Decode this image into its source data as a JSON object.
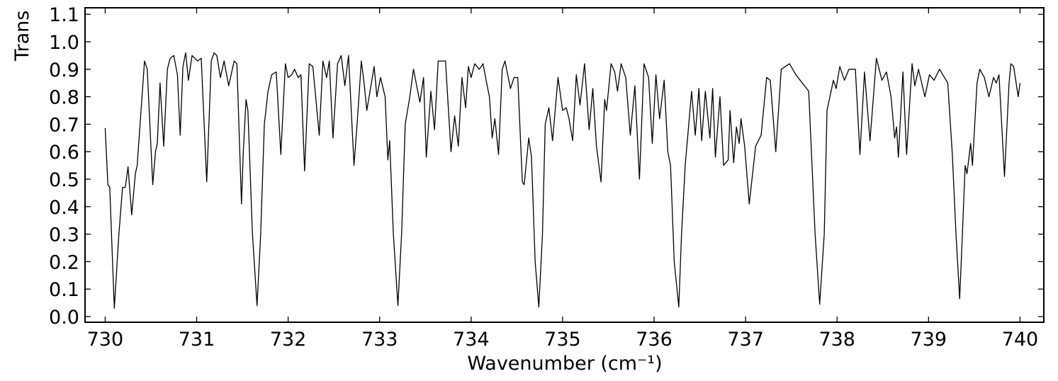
{
  "chart_data": {
    "type": "line",
    "x_label": "Wavenumber (cm⁻¹)",
    "y_label": "Trans",
    "color": "#000000",
    "xlim": [
      729.78,
      740.26
    ],
    "ylim": [
      -0.0206,
      1.1237
    ],
    "xticks": [
      730,
      731,
      732,
      733,
      734,
      735,
      736,
      737,
      738,
      739,
      740
    ],
    "yticks": [
      {
        "value": 0,
        "label": "0.0"
      },
      0.1,
      0.2,
      0.3,
      0.4,
      0.5,
      0.6,
      0.7,
      0.8,
      0.9,
      {
        "value": 1,
        "label": "1.0"
      },
      1.1
    ],
    "x": [
      730.0,
      730.03,
      730.05,
      730.1,
      730.15,
      730.19,
      730.22,
      730.25,
      730.29,
      730.33,
      730.35,
      730.43,
      730.46,
      730.52,
      730.55,
      730.57,
      730.6,
      730.64,
      730.68,
      730.71,
      730.75,
      730.79,
      730.82,
      730.85,
      730.88,
      730.91,
      730.95,
      731.01,
      731.05,
      731.11,
      731.16,
      731.19,
      731.22,
      731.26,
      731.3,
      731.35,
      731.41,
      731.44,
      731.49,
      731.51,
      731.54,
      731.56,
      731.61,
      731.66,
      731.7,
      731.74,
      731.78,
      731.82,
      731.87,
      731.92,
      731.97,
      732.0,
      732.04,
      732.07,
      732.11,
      732.14,
      732.18,
      732.23,
      732.27,
      732.34,
      732.38,
      732.42,
      732.45,
      732.49,
      732.54,
      732.58,
      732.62,
      732.66,
      732.72,
      732.76,
      732.8,
      732.83,
      732.86,
      732.91,
      732.94,
      732.97,
      733.01,
      733.06,
      733.09,
      733.11,
      733.15,
      733.2,
      733.24,
      733.28,
      733.33,
      733.37,
      733.44,
      733.48,
      733.51,
      733.56,
      733.6,
      733.64,
      733.72,
      733.78,
      733.82,
      733.86,
      733.9,
      733.94,
      733.97,
      734.0,
      734.04,
      734.09,
      734.13,
      734.17,
      734.2,
      734.23,
      734.26,
      734.3,
      734.34,
      734.37,
      734.43,
      734.47,
      734.51,
      734.56,
      734.58,
      734.63,
      734.66,
      734.7,
      734.74,
      734.78,
      734.81,
      734.85,
      734.89,
      734.95,
      735.0,
      735.04,
      735.07,
      735.11,
      735.15,
      735.19,
      735.24,
      735.29,
      735.33,
      735.37,
      735.42,
      735.46,
      735.48,
      735.53,
      735.57,
      735.6,
      735.64,
      735.69,
      735.74,
      735.79,
      735.84,
      735.89,
      735.94,
      735.98,
      736.02,
      736.06,
      736.11,
      736.15,
      736.18,
      736.22,
      736.27,
      736.3,
      736.34,
      736.41,
      736.45,
      736.49,
      736.52,
      736.56,
      736.61,
      736.64,
      736.67,
      736.72,
      736.76,
      736.81,
      736.83,
      736.87,
      736.9,
      736.93,
      736.95,
      736.99,
      737.04,
      737.11,
      737.17,
      737.23,
      737.27,
      737.33,
      737.39,
      737.48,
      737.55,
      737.62,
      737.69,
      737.76,
      737.81,
      737.86,
      737.89,
      737.96,
      737.99,
      738.03,
      738.08,
      738.13,
      738.2,
      738.25,
      738.3,
      738.36,
      738.43,
      738.49,
      738.54,
      738.59,
      738.63,
      738.65,
      738.67,
      738.72,
      738.76,
      738.82,
      738.85,
      738.89,
      738.96,
      739.01,
      739.06,
      739.12,
      739.21,
      739.26,
      739.3,
      739.34,
      739.37,
      739.4,
      739.42,
      739.46,
      739.48,
      739.53,
      739.56,
      739.61,
      739.66,
      739.71,
      739.74,
      739.77,
      739.83,
      739.88,
      739.9,
      739.93,
      739.98,
      740.0
    ],
    "values": [
      0.686,
      0.48,
      0.47,
      0.03,
      0.3,
      0.47,
      0.47,
      0.545,
      0.37,
      0.52,
      0.55,
      0.93,
      0.9,
      0.48,
      0.6,
      0.63,
      0.85,
      0.62,
      0.9,
      0.94,
      0.95,
      0.88,
      0.66,
      0.91,
      0.96,
      0.86,
      0.95,
      0.93,
      0.94,
      0.49,
      0.93,
      0.96,
      0.95,
      0.87,
      0.93,
      0.84,
      0.93,
      0.92,
      0.41,
      0.6,
      0.79,
      0.75,
      0.3,
      0.04,
      0.3,
      0.7,
      0.82,
      0.88,
      0.89,
      0.59,
      0.92,
      0.87,
      0.88,
      0.9,
      0.87,
      0.88,
      0.53,
      0.92,
      0.91,
      0.66,
      0.93,
      0.87,
      0.93,
      0.65,
      0.92,
      0.95,
      0.84,
      0.95,
      0.55,
      0.73,
      0.93,
      0.85,
      0.75,
      0.85,
      0.91,
      0.8,
      0.87,
      0.8,
      0.57,
      0.64,
      0.3,
      0.04,
      0.3,
      0.7,
      0.8,
      0.9,
      0.78,
      0.87,
      0.58,
      0.82,
      0.68,
      0.93,
      0.93,
      0.6,
      0.73,
      0.62,
      0.87,
      0.76,
      0.91,
      0.87,
      0.92,
      0.9,
      0.92,
      0.85,
      0.8,
      0.65,
      0.72,
      0.59,
      0.9,
      0.93,
      0.83,
      0.87,
      0.87,
      0.49,
      0.48,
      0.65,
      0.58,
      0.2,
      0.035,
      0.3,
      0.7,
      0.76,
      0.64,
      0.87,
      0.75,
      0.76,
      0.72,
      0.64,
      0.88,
      0.77,
      0.92,
      0.68,
      0.83,
      0.62,
      0.49,
      0.79,
      0.75,
      0.92,
      0.89,
      0.82,
      0.92,
      0.87,
      0.66,
      0.84,
      0.5,
      0.92,
      0.87,
      0.63,
      0.88,
      0.72,
      0.86,
      0.6,
      0.55,
      0.2,
      0.035,
      0.3,
      0.55,
      0.82,
      0.66,
      0.83,
      0.64,
      0.82,
      0.65,
      0.83,
      0.58,
      0.8,
      0.55,
      0.57,
      0.75,
      0.56,
      0.69,
      0.63,
      0.72,
      0.62,
      0.41,
      0.62,
      0.66,
      0.87,
      0.86,
      0.6,
      0.9,
      0.92,
      0.88,
      0.85,
      0.82,
      0.3,
      0.045,
      0.3,
      0.75,
      0.86,
      0.83,
      0.91,
      0.86,
      0.9,
      0.9,
      0.59,
      0.89,
      0.64,
      0.94,
      0.86,
      0.89,
      0.8,
      0.65,
      0.69,
      0.58,
      0.89,
      0.59,
      0.92,
      0.84,
      0.9,
      0.8,
      0.88,
      0.86,
      0.9,
      0.85,
      0.59,
      0.3,
      0.065,
      0.3,
      0.55,
      0.52,
      0.63,
      0.55,
      0.85,
      0.9,
      0.87,
      0.8,
      0.87,
      0.85,
      0.88,
      0.51,
      0.85,
      0.92,
      0.91,
      0.8,
      0.85
    ]
  }
}
